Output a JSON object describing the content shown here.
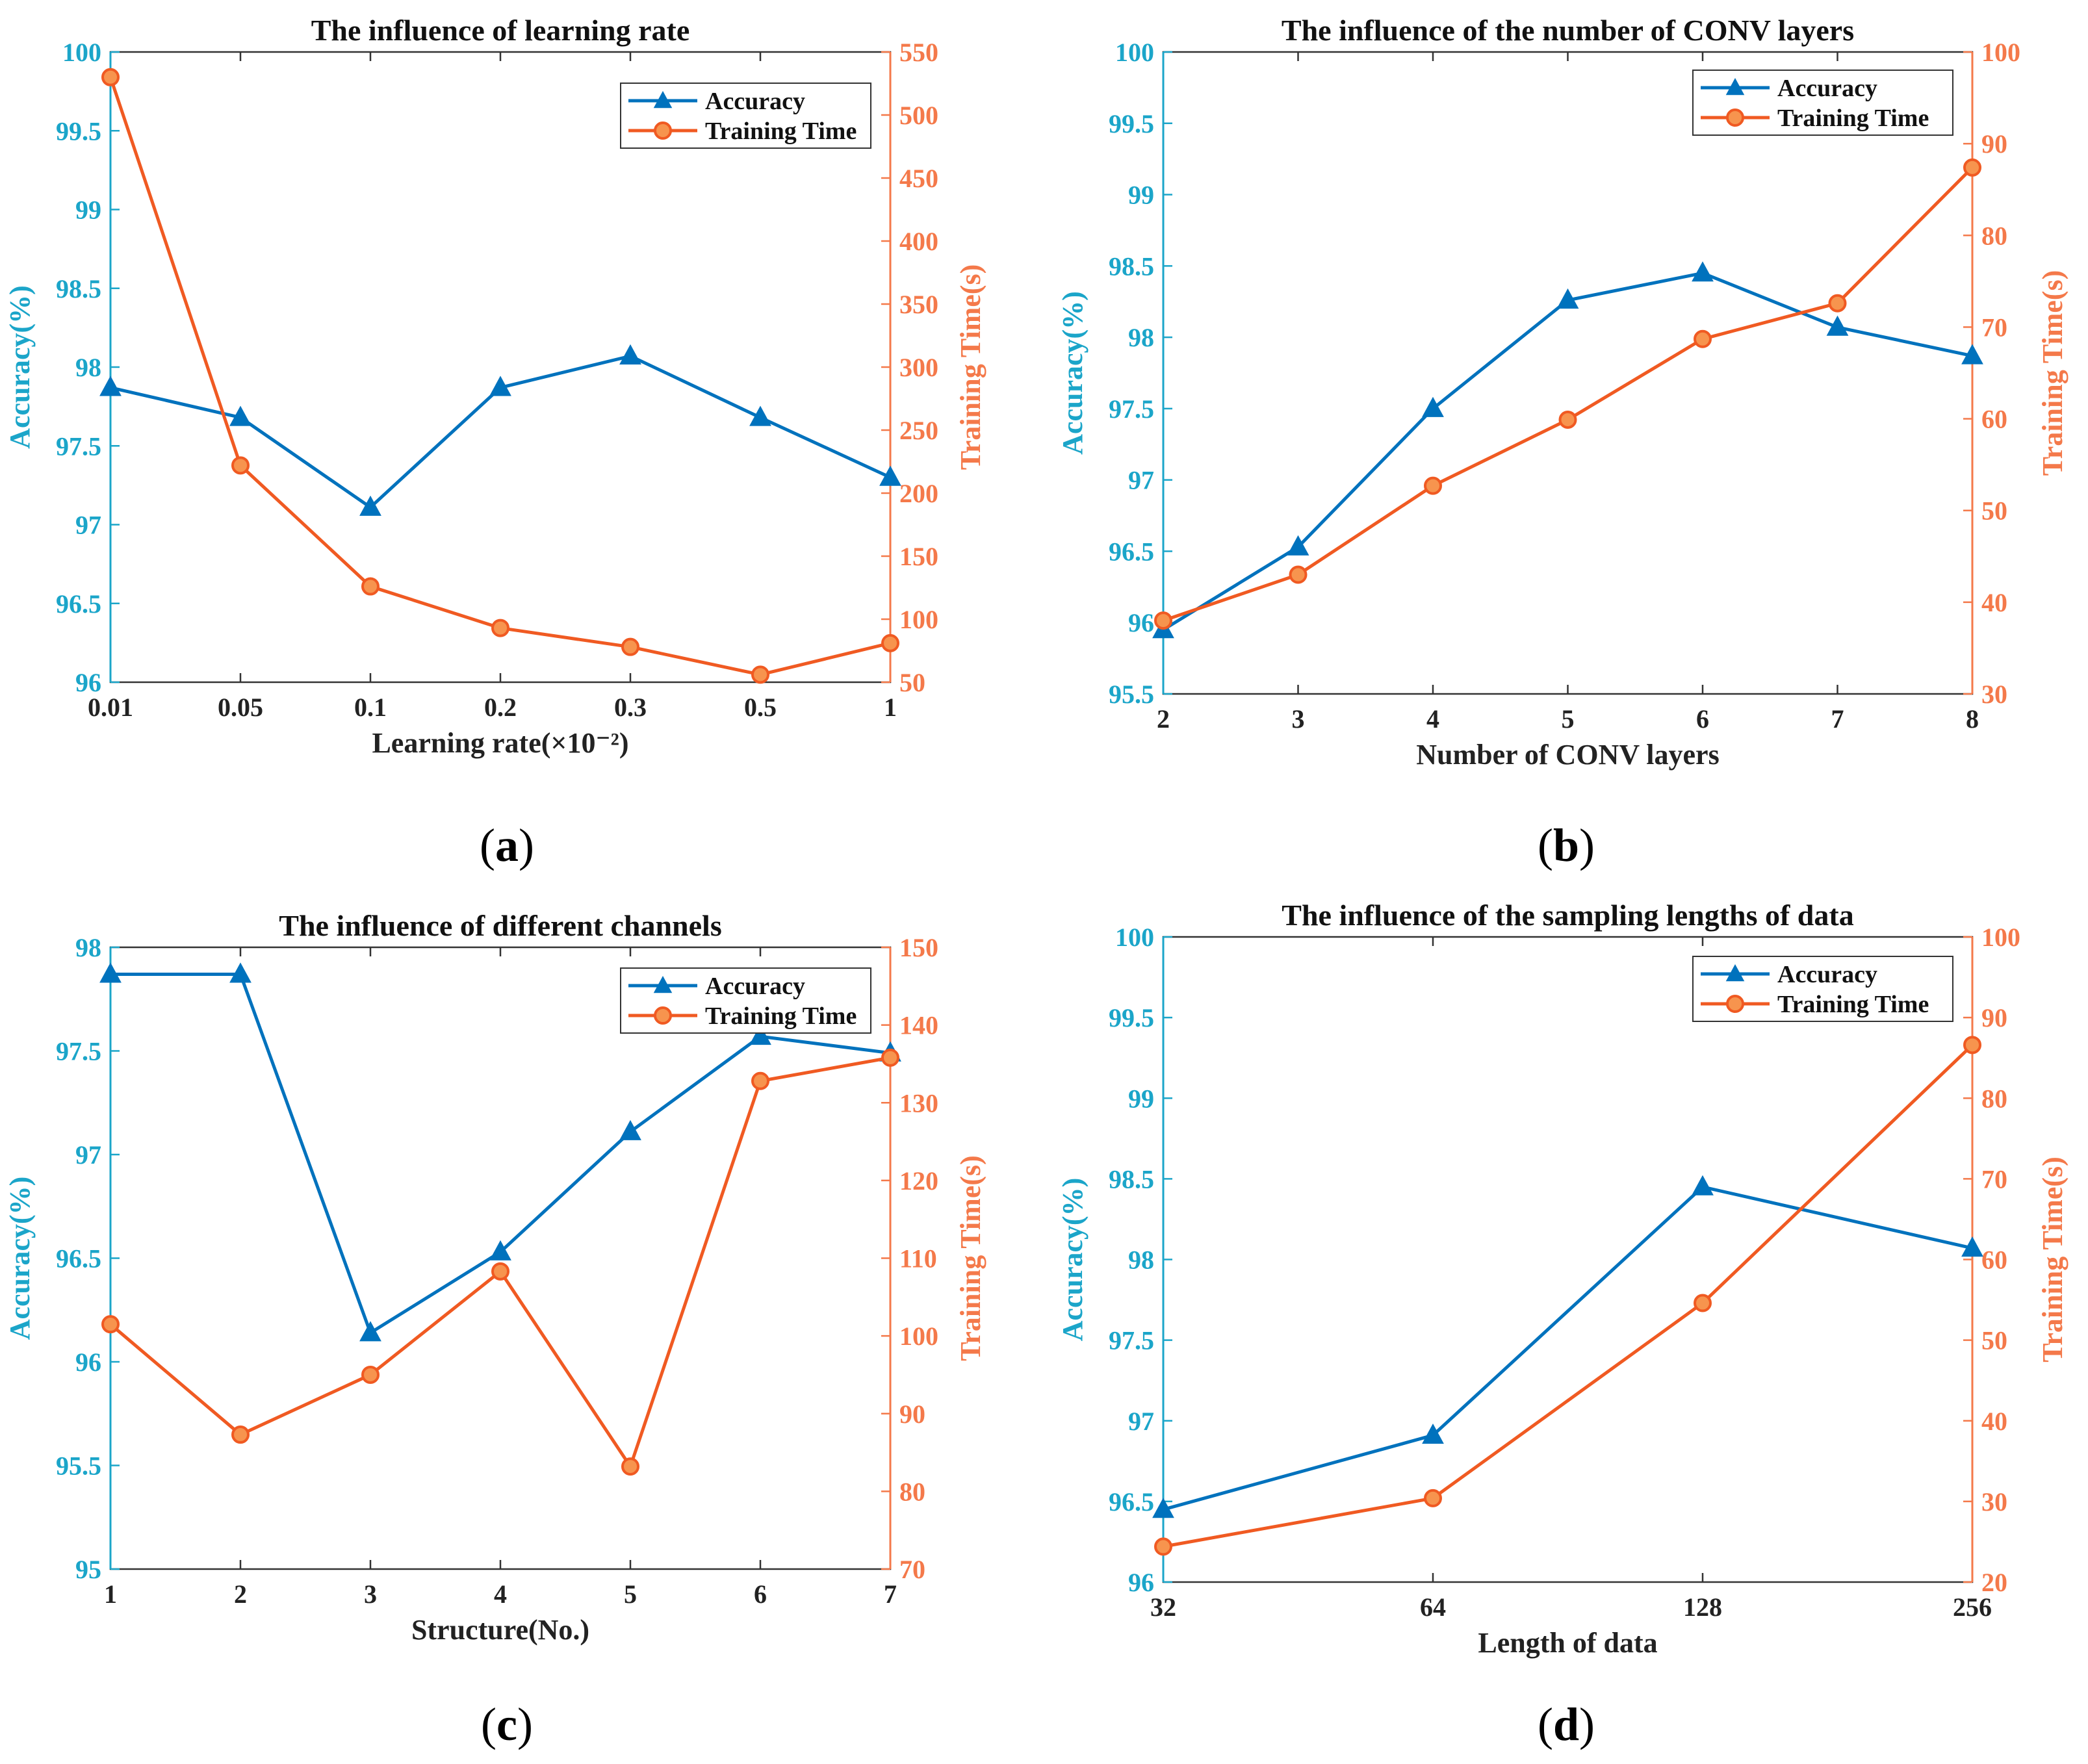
{
  "colors": {
    "accuracy": "#0072BD",
    "training_time": "#F05A22",
    "left_axis": "#1BA5C9",
    "right_axis": "#F4794A",
    "axis_box": "#333333"
  },
  "legend": {
    "accuracy": "Accuracy",
    "training_time": "Training Time"
  },
  "chart_data": [
    {
      "type": "line",
      "panel_label": "a",
      "title": "The influence of learning rate",
      "xlabel": "Learning rate(×10⁻²)",
      "ylabel_left": "Accuracy(%)",
      "ylabel_right": "Training Time(s)",
      "categories": [
        "0.01",
        "0.05",
        "0.1",
        "0.2",
        "0.3",
        "0.5",
        "1"
      ],
      "ylim_left": [
        96,
        100
      ],
      "yticks_left": [
        "96",
        "96.5",
        "97",
        "97.5",
        "98",
        "98.5",
        "99",
        "99.5",
        "100"
      ],
      "ylim_right": [
        50,
        550
      ],
      "yticks_right": [
        "50",
        "100",
        "150",
        "200",
        "250",
        "300",
        "350",
        "400",
        "450",
        "500",
        "550"
      ],
      "legend_position": "top-right",
      "series": [
        {
          "name": "Accuracy",
          "axis": "left",
          "marker": "triangle",
          "values": [
            97.87,
            97.68,
            97.11,
            97.87,
            98.07,
            97.68,
            97.3
          ]
        },
        {
          "name": "Training Time",
          "axis": "right",
          "marker": "circle",
          "values": [
            530,
            222,
            126,
            93,
            78,
            56,
            81
          ]
        }
      ]
    },
    {
      "type": "line",
      "panel_label": "b",
      "title": "The influence of the number of CONV layers",
      "xlabel": "Number of CONV layers",
      "ylabel_left": "Accuracy(%)",
      "ylabel_right": "Training Time(s)",
      "categories": [
        "2",
        "3",
        "4",
        "5",
        "6",
        "7",
        "8"
      ],
      "ylim_left": [
        95.5,
        100
      ],
      "yticks_left": [
        "95.5",
        "96",
        "96.5",
        "97",
        "97.5",
        "98",
        "98.5",
        "99",
        "99.5",
        "100"
      ],
      "ylim_right": [
        30,
        100
      ],
      "yticks_right": [
        "30",
        "40",
        "50",
        "60",
        "70",
        "80",
        "90",
        "100"
      ],
      "legend_position": "top-right",
      "series": [
        {
          "name": "Accuracy",
          "axis": "left",
          "marker": "triangle",
          "values": [
            95.95,
            96.53,
            97.5,
            98.26,
            98.45,
            98.07,
            97.87
          ]
        },
        {
          "name": "Training Time",
          "axis": "right",
          "marker": "circle",
          "values": [
            38,
            43,
            52.7,
            59.9,
            68.7,
            72.6,
            87.4
          ]
        }
      ]
    },
    {
      "type": "line",
      "panel_label": "c",
      "title": "The influence of different channels",
      "xlabel": "Structure(No.)",
      "ylabel_left": "Accuracy(%)",
      "ylabel_right": "Training Time(s)",
      "categories": [
        "1",
        "2",
        "3",
        "4",
        "5",
        "6",
        "7"
      ],
      "ylim_left": [
        95,
        98
      ],
      "yticks_left": [
        "95",
        "95.5",
        "96",
        "96.5",
        "97",
        "97.5",
        "98"
      ],
      "ylim_right": [
        70,
        150
      ],
      "yticks_right": [
        "70",
        "80",
        "90",
        "100",
        "110",
        "120",
        "130",
        "140",
        "150"
      ],
      "legend_position": "top-right",
      "series": [
        {
          "name": "Accuracy",
          "axis": "left",
          "marker": "triangle",
          "values": [
            97.87,
            97.87,
            96.14,
            96.53,
            97.11,
            97.57,
            97.49
          ]
        },
        {
          "name": "Training Time",
          "axis": "right",
          "marker": "circle",
          "values": [
            101.5,
            87.3,
            95,
            108.3,
            83.2,
            132.8,
            135.8
          ]
        }
      ]
    },
    {
      "type": "line",
      "panel_label": "d",
      "title": "The influence of the sampling lengths of data",
      "xlabel": "Length of data",
      "ylabel_left": "Accuracy(%)",
      "ylabel_right": "Training Time(s)",
      "categories": [
        "32",
        "64",
        "128",
        "256"
      ],
      "ylim_left": [
        96,
        100
      ],
      "yticks_left": [
        "96",
        "96.5",
        "97",
        "97.5",
        "98",
        "98.5",
        "99",
        "99.5",
        "100"
      ],
      "ylim_right": [
        20,
        100
      ],
      "yticks_right": [
        "20",
        "30",
        "40",
        "50",
        "60",
        "70",
        "80",
        "90",
        "100"
      ],
      "legend_position": "top-right",
      "series": [
        {
          "name": "Accuracy",
          "axis": "left",
          "marker": "triangle",
          "values": [
            96.45,
            96.91,
            98.45,
            98.07
          ]
        },
        {
          "name": "Training Time",
          "axis": "right",
          "marker": "circle",
          "values": [
            24.4,
            30.4,
            54.6,
            86.6
          ]
        }
      ]
    }
  ]
}
